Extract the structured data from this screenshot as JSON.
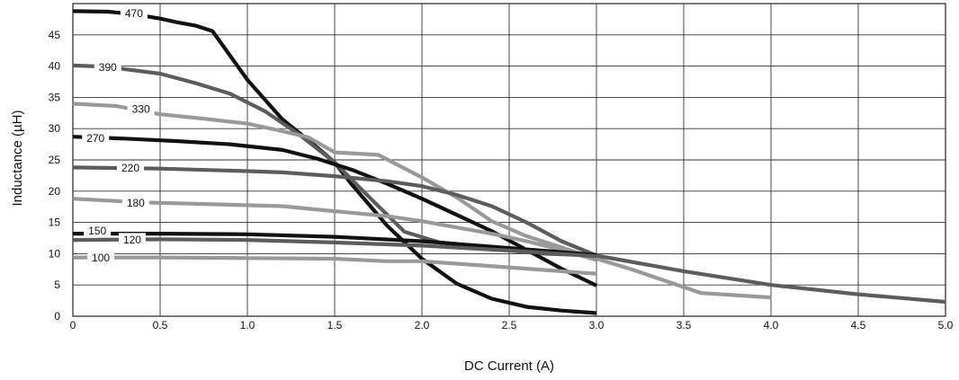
{
  "chart_data": {
    "type": "line",
    "title": "",
    "xlabel": "DC Current (A)",
    "ylabel": "Inductance (µH)",
    "xlim": [
      0,
      5
    ],
    "ylim": [
      0,
      50
    ],
    "grid": true,
    "x_ticks": [
      "0",
      "0.5",
      "1.0",
      "1.5",
      "2.0",
      "2.5",
      "3.0",
      "3.5",
      "4.0",
      "4.5",
      "5.0"
    ],
    "y_ticks": [
      "0",
      "5",
      "10",
      "15",
      "20",
      "25",
      "30",
      "35",
      "40",
      "45"
    ],
    "series": [
      {
        "name": "470",
        "color": "#111111",
        "label_at": [
          0.35,
          48.5
        ],
        "x": [
          0,
          0.2,
          0.35,
          0.5,
          0.6,
          0.7,
          0.8,
          1.0,
          1.2,
          1.4,
          1.5,
          1.6,
          1.8,
          2.0,
          2.2,
          2.4,
          2.6,
          2.8,
          3.0
        ],
        "y": [
          48.8,
          48.7,
          48.3,
          47.6,
          47.0,
          46.5,
          45.6,
          37.8,
          31.5,
          27.0,
          24.6,
          21.0,
          14.5,
          9.2,
          5.2,
          2.8,
          1.5,
          0.9,
          0.5
        ]
      },
      {
        "name": "390",
        "color": "#5c5c5c",
        "label_at": [
          0.2,
          39.9
        ],
        "x": [
          0,
          0.2,
          0.3,
          0.5,
          0.7,
          0.9,
          1.1,
          1.3,
          1.5,
          1.7,
          1.9,
          2.1,
          2.3,
          2.5,
          2.7,
          2.9,
          3.0
        ],
        "y": [
          40.1,
          39.9,
          39.5,
          38.8,
          37.3,
          35.6,
          32.8,
          29.0,
          24.6,
          19.0,
          13.5,
          11.8,
          11.2,
          10.5,
          10.0,
          9.8,
          9.6
        ]
      },
      {
        "name": "330",
        "color": "#999999",
        "label_at": [
          0.39,
          33.2
        ],
        "x": [
          0,
          0.25,
          0.5,
          0.75,
          1.0,
          1.2,
          1.35,
          1.5,
          1.75,
          2.0,
          2.2,
          2.4,
          2.6,
          2.8,
          3.0,
          3.2,
          3.4,
          3.6,
          4.0
        ],
        "y": [
          34.0,
          33.6,
          32.3,
          31.6,
          30.8,
          29.6,
          28.6,
          26.2,
          25.8,
          22.2,
          19.0,
          15.2,
          12.8,
          11.0,
          9.2,
          7.5,
          5.6,
          3.7,
          3.0
        ]
      },
      {
        "name": "270",
        "color": "#111111",
        "label_at": [
          0.13,
          28.5
        ],
        "x": [
          0,
          0.3,
          0.6,
          0.9,
          1.2,
          1.4,
          1.6,
          1.8,
          2.0,
          2.2,
          2.4,
          2.6,
          2.8,
          3.0
        ],
        "y": [
          28.7,
          28.4,
          28.0,
          27.5,
          26.6,
          25.2,
          23.4,
          21.2,
          18.8,
          16.2,
          13.6,
          10.6,
          7.6,
          4.9
        ]
      },
      {
        "name": "220",
        "color": "#5c5c5c",
        "label_at": [
          0.33,
          23.8
        ],
        "x": [
          0,
          0.5,
          1.0,
          1.2,
          1.5,
          1.8,
          2.0,
          2.2,
          2.4,
          2.6,
          2.8,
          3.0,
          3.5,
          4.0,
          4.5,
          5.0
        ],
        "y": [
          23.8,
          23.6,
          23.2,
          23.0,
          22.4,
          21.6,
          20.8,
          19.4,
          17.6,
          15.0,
          12.0,
          9.7,
          7.2,
          5.0,
          3.5,
          2.3
        ]
      },
      {
        "name": "180",
        "color": "#999999",
        "label_at": [
          0.36,
          18.2
        ],
        "x": [
          0,
          0.4,
          0.8,
          1.2,
          1.5,
          1.8,
          2.0,
          2.2,
          2.4,
          2.6,
          2.8,
          3.0
        ],
        "y": [
          18.8,
          18.2,
          17.9,
          17.6,
          16.8,
          16.0,
          15.2,
          14.2,
          13.2,
          12.0,
          10.6,
          9.0
        ]
      },
      {
        "name": "150",
        "color": "#111111",
        "label_at": [
          0.14,
          13.7
        ],
        "x": [
          0,
          0.5,
          1.0,
          1.5,
          2.0,
          2.5,
          3.0
        ],
        "y": [
          13.2,
          13.2,
          13.1,
          12.7,
          12.0,
          10.9,
          9.8
        ]
      },
      {
        "name": "120",
        "color": "#5c5c5c",
        "label_at": [
          0.34,
          12.3
        ],
        "x": [
          0,
          0.5,
          1.0,
          1.5,
          2.0,
          2.5,
          3.0
        ],
        "y": [
          12.2,
          12.3,
          12.2,
          11.8,
          11.3,
          10.5,
          9.6
        ]
      },
      {
        "name": "100",
        "color": "#999999",
        "label_at": [
          0.16,
          9.4
        ],
        "x": [
          0,
          0.5,
          1.0,
          1.5,
          1.8,
          2.0,
          2.3,
          2.6,
          3.0
        ],
        "y": [
          9.4,
          9.4,
          9.3,
          9.2,
          8.8,
          8.8,
          8.2,
          7.6,
          6.8
        ]
      }
    ]
  }
}
